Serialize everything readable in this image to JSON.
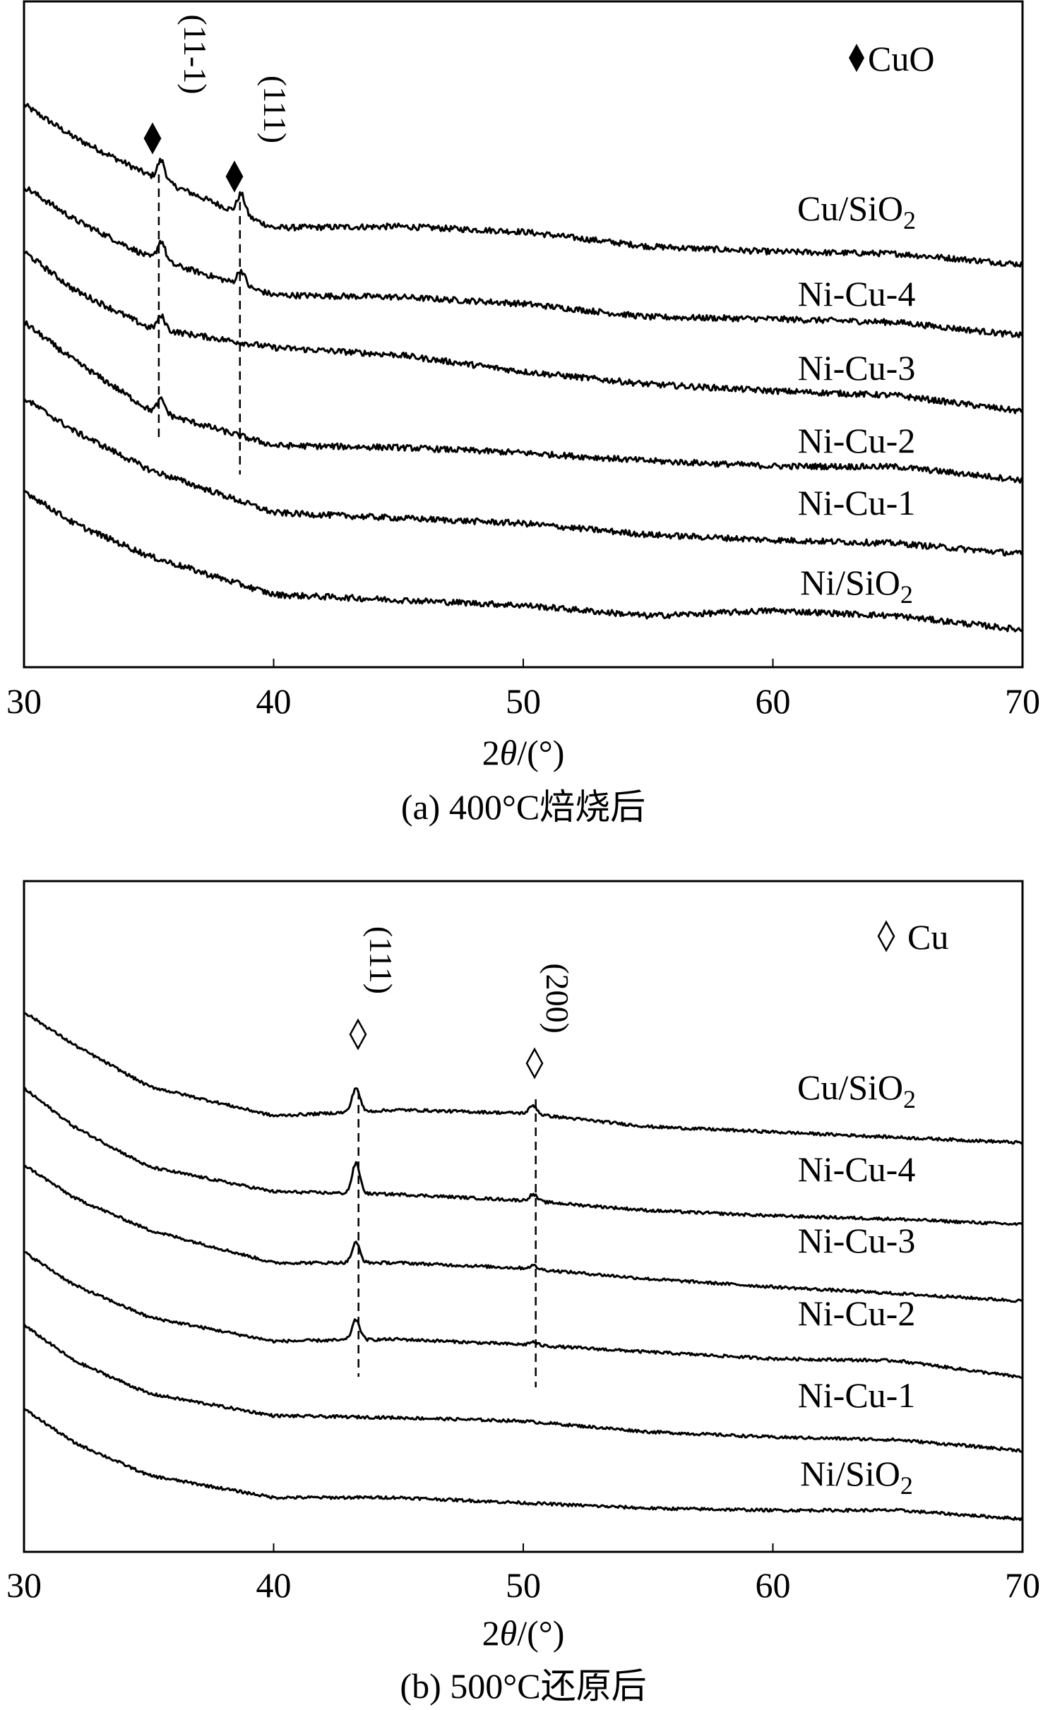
{
  "chart_data": [
    {
      "type": "line",
      "title": "(a) 400°C焙烧后",
      "xlabel_prefix": "2",
      "xlabel_theta": "θ",
      "xlabel_suffix": "/(°)",
      "ylabel": "",
      "xlim": [
        30,
        70
      ],
      "ylim": [
        0,
        100
      ],
      "xticks": [
        "30",
        "40",
        "50",
        "60",
        "70"
      ],
      "grid": false,
      "legend": {
        "symbol": "♦",
        "text": "CuO",
        "placement": "top-right"
      },
      "x": [
        30,
        32,
        35,
        40,
        45,
        50,
        55,
        60,
        65,
        70
      ],
      "series": [
        {
          "name": "Cu/SiO2",
          "values": [
            84.5,
            79.6,
            73.9,
            66.0,
            66.2,
            65.4,
            63.2,
            62.4,
            62.1,
            60.5
          ],
          "peaks": [
            {
              "x": 35.5,
              "h": 3.0
            },
            {
              "x": 38.7,
              "h": 3.0
            }
          ]
        },
        {
          "name": "Ni-Cu-4",
          "values": [
            72.2,
            67.3,
            61.6,
            55.9,
            55.6,
            54.6,
            52.6,
            52.3,
            51.8,
            49.8
          ],
          "peaks": [
            {
              "x": 35.5,
              "h": 3.0
            },
            {
              "x": 38.7,
              "h": 2.2
            }
          ]
        },
        {
          "name": "Ni-Cu-3",
          "values": [
            62.4,
            56.7,
            51.0,
            48.0,
            46.9,
            44.4,
            42.5,
            41.5,
            40.8,
            38.4
          ],
          "peaks": [
            {
              "x": 35.5,
              "h": 2.0
            }
          ]
        },
        {
          "name": "Ni-Cu-2",
          "values": [
            51.8,
            46.1,
            38.7,
            33.3,
            33.0,
            32.2,
            31.0,
            30.2,
            30.1,
            28.1
          ],
          "peaks": [
            {
              "x": 35.5,
              "h": 2.0
            }
          ]
        },
        {
          "name": "Ni-Cu-1",
          "values": [
            40.4,
            35.5,
            29.7,
            23.2,
            22.4,
            21.6,
            19.9,
            19.1,
            18.6,
            17.0
          ],
          "peaks": []
        },
        {
          "name": "Ni/SiO2",
          "values": [
            26.5,
            21.6,
            16.7,
            10.9,
            10.1,
            9.3,
            7.7,
            8.5,
            7.7,
            5.6
          ],
          "peaks": []
        }
      ],
      "annotations": [
        {
          "x": 35.4,
          "symbol": "♦",
          "label": "(11-1)"
        },
        {
          "x": 38.65,
          "symbol": "♦",
          "label": "(111)"
        }
      ]
    },
    {
      "type": "line",
      "title": "(b) 500°C还原后",
      "xlabel_prefix": "2",
      "xlabel_theta": "θ",
      "xlabel_suffix": "/(°)",
      "ylabel": "",
      "xlim": [
        30,
        70
      ],
      "ylim": [
        0,
        100
      ],
      "xticks": [
        "30",
        "40",
        "50",
        "60",
        "70"
      ],
      "grid": false,
      "legend": {
        "symbol": "◊",
        "text": "Cu",
        "placement": "top-right"
      },
      "x": [
        30,
        32,
        35,
        40,
        45,
        50,
        55,
        60,
        65,
        70
      ],
      "series": [
        {
          "name": "Cu/SiO2",
          "values": [
            80.5,
            75.6,
            69.4,
            65.0,
            65.9,
            65.4,
            63.4,
            62.6,
            61.8,
            61.0
          ],
          "peaks": [
            {
              "x": 43.3,
              "h": 3.6
            },
            {
              "x": 50.4,
              "h": 1.3
            }
          ]
        },
        {
          "name": "Ni-Cu-4",
          "values": [
            69.1,
            63.4,
            57.4,
            53.7,
            53.3,
            52.4,
            50.9,
            50.1,
            49.6,
            48.8
          ],
          "peaks": [
            {
              "x": 43.3,
              "h": 4.5
            },
            {
              "x": 50.4,
              "h": 1.0
            }
          ]
        },
        {
          "name": "Ni-Cu-3",
          "values": [
            57.7,
            52.8,
            48.0,
            43.1,
            43.1,
            42.3,
            40.7,
            39.5,
            38.5,
            37.4
          ],
          "peaks": [
            {
              "x": 43.3,
              "h": 3.0
            },
            {
              "x": 50.4,
              "h": 0.5
            }
          ]
        },
        {
          "name": "Ni-Cu-2",
          "values": [
            44.7,
            39.8,
            35.0,
            31.4,
            31.7,
            30.9,
            29.8,
            28.8,
            28.5,
            26.0
          ],
          "peaks": [
            {
              "x": 43.3,
              "h": 3.0
            },
            {
              "x": 50.4,
              "h": 0.5
            }
          ]
        },
        {
          "name": "Ni-Cu-1",
          "values": [
            33.8,
            28.5,
            23.6,
            20.3,
            20.0,
            19.5,
            17.9,
            17.1,
            16.7,
            15.1
          ],
          "peaks": []
        },
        {
          "name": "Ni/SiO2",
          "values": [
            21.3,
            16.3,
            11.4,
            8.1,
            8.1,
            7.3,
            6.5,
            6.2,
            6.2,
            4.9
          ],
          "peaks": []
        }
      ],
      "annotations": [
        {
          "x": 43.4,
          "symbol": "◊",
          "label": "(111)"
        },
        {
          "x": 50.5,
          "symbol": "◊",
          "label": "(200)"
        }
      ]
    }
  ]
}
